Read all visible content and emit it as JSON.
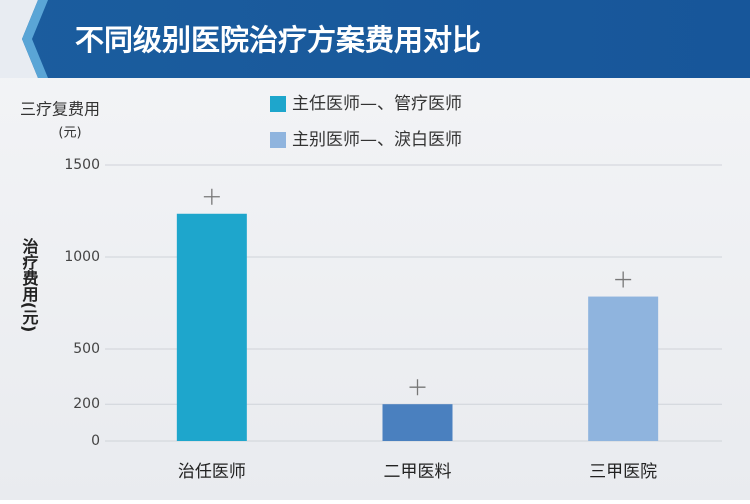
{
  "chart_data": {
    "type": "bar",
    "title": "不同级别医院治疗方案费用对比",
    "y_label_top": [
      "三疗复费用",
      "(元)"
    ],
    "y_label": "治疗费用(元)",
    "legend": [
      {
        "name": "主任医师—、管疗医师",
        "color": "#1ea6cc"
      },
      {
        "name": "主别医师—、淚白医师",
        "color": "#8fb4de"
      }
    ],
    "categories": [
      "治任医师",
      "二甲医料",
      "三甲医院"
    ],
    "values": [
      1235,
      200,
      785
    ],
    "colors": [
      "#1ea6cc",
      "#4a80bf",
      "#8fb4de"
    ],
    "ylim": [
      0,
      1500
    ],
    "yticks": [
      0,
      200,
      500,
      1000,
      1500
    ],
    "grid": true
  }
}
